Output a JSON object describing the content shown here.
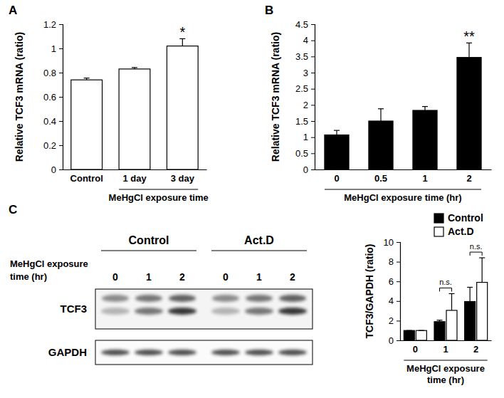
{
  "panel_labels": [
    "A",
    "B",
    "C"
  ],
  "chart_data": [
    {
      "type": "bar",
      "categories": [
        "Control",
        "1 day",
        "3 day"
      ],
      "values": [
        0.74,
        0.83,
        1.02
      ],
      "errors": [
        0.015,
        0.012,
        0.06
      ],
      "color": "#ffffff",
      "ylabel": "Relative TCF3 mRNA (ratio)",
      "xlabel": "MeHgCl exposure time",
      "ylim": [
        0,
        1.2
      ],
      "yticks": [
        0,
        0.2,
        0.4,
        0.6,
        0.8,
        1,
        1.2
      ],
      "annotations": [
        {
          "text": "*",
          "category": "3 day"
        }
      ]
    },
    {
      "type": "bar",
      "categories": [
        "0",
        "0.5",
        "1",
        "2"
      ],
      "values": [
        1.07,
        1.5,
        1.83,
        3.47
      ],
      "errors": [
        0.14,
        0.38,
        0.12,
        0.45
      ],
      "color": "#000000",
      "ylabel": "Relative TCF3 mRNA (ratio)",
      "xlabel": "MeHgCl exposure time (hr)",
      "ylim": [
        0,
        4.5
      ],
      "yticks": [
        0,
        0.5,
        1,
        1.5,
        2,
        2.5,
        3,
        3.5,
        4,
        4.5
      ],
      "annotations": [
        {
          "text": "**",
          "category": "2"
        }
      ]
    },
    {
      "type": "bar",
      "categories": [
        "0",
        "1",
        "2"
      ],
      "series": [
        {
          "name": "Control",
          "color": "#000000",
          "values": [
            1,
            1.9,
            3.95
          ],
          "errors": [
            0,
            0.15,
            1.45
          ]
        },
        {
          "name": "Act.D",
          "color": "#ffffff",
          "values": [
            1,
            3.05,
            5.9
          ],
          "errors": [
            0,
            1.7,
            2.5
          ]
        }
      ],
      "ylabel": "TCF3/GAPDH (ratio)",
      "xlabel": "MeHgCl exposure time (hr)",
      "ylim": [
        0,
        10
      ],
      "yticks": [
        0,
        2,
        4,
        6,
        8,
        10
      ],
      "legend": "top-right",
      "annotations": [
        {
          "text": "n.s.",
          "category": "1"
        },
        {
          "text": "n.s.",
          "category": "2"
        }
      ]
    }
  ],
  "blot": {
    "groups": [
      "Control",
      "Act.D"
    ],
    "row_label": "MeHgCl exposure time (hr)",
    "lanes": [
      "0",
      "1",
      "2",
      "0",
      "1",
      "2"
    ],
    "bands": [
      "TCF3",
      "GAPDH"
    ]
  }
}
